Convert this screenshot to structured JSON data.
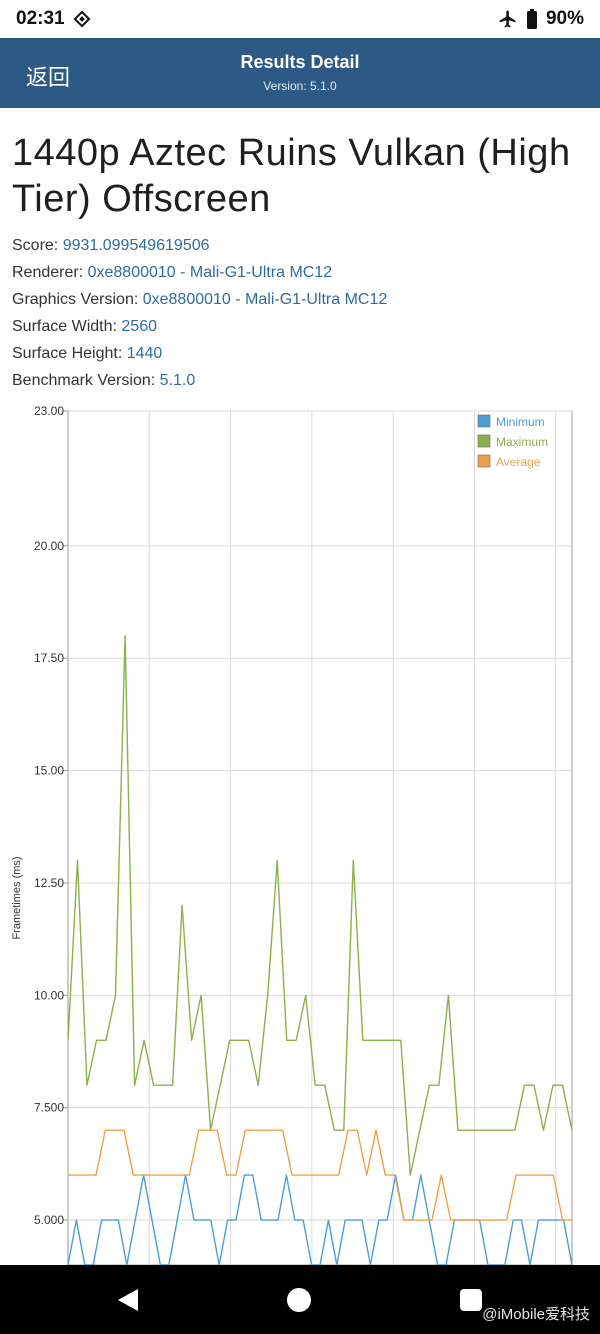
{
  "status_bar": {
    "time": "02:31",
    "battery": "90%"
  },
  "app_bar": {
    "back_label": "返回",
    "title": "Results Detail",
    "subtitle": "Version: 5.1.0"
  },
  "test": {
    "title": "1440p Aztec Ruins Vulkan (High Tier) Offscreen",
    "info": [
      {
        "label": "Score:",
        "value": "9931.099549619506"
      },
      {
        "label": "Renderer:",
        "value": "0xe8800010 - Mali-G1-Ultra MC12"
      },
      {
        "label": "Graphics Version:",
        "value": "0xe8800010 - Mali-G1-Ultra MC12"
      },
      {
        "label": "Surface Width:",
        "value": "2560"
      },
      {
        "label": "Surface Height:",
        "value": "1440"
      },
      {
        "label": "Benchmark Version:",
        "value": "5.1.0"
      }
    ]
  },
  "chart_data": {
    "type": "line",
    "ylabel": "Frametimes (ms)",
    "ylim": [
      4.0,
      23.0
    ],
    "yticks": [
      {
        "value": 23.0,
        "label": "23.00"
      },
      {
        "value": 20.0,
        "label": "20.00"
      },
      {
        "value": 17.5,
        "label": "17.50"
      },
      {
        "value": 15.0,
        "label": "15.00"
      },
      {
        "value": 12.5,
        "label": "12.50"
      },
      {
        "value": 10.0,
        "label": "10.00"
      },
      {
        "value": 7.5,
        "label": "7.500"
      },
      {
        "value": 5.0,
        "label": "5.000"
      }
    ],
    "grid": true,
    "legend_position": "top-right",
    "series": [
      {
        "name": "Minimum",
        "color": "#4a9fd4",
        "values": [
          4,
          5,
          4,
          4,
          5,
          5,
          5,
          4,
          5,
          6,
          5,
          4,
          4,
          5,
          6,
          5,
          5,
          5,
          4,
          5,
          5,
          6,
          6,
          5,
          5,
          5,
          6,
          5,
          5,
          4,
          4,
          5,
          4,
          5,
          5,
          5,
          4,
          5,
          5,
          6,
          5,
          5,
          6,
          5,
          4,
          4,
          5,
          5,
          5,
          5,
          4,
          4,
          4,
          5,
          5,
          4,
          5,
          5,
          5,
          5,
          4
        ]
      },
      {
        "name": "Maximum",
        "color": "#8db04a",
        "values": [
          9,
          13,
          8,
          9,
          9,
          10,
          18,
          8,
          9,
          8,
          8,
          8,
          12,
          9,
          10,
          7,
          8,
          9,
          9,
          9,
          8,
          10,
          13,
          9,
          9,
          10,
          8,
          8,
          7,
          7,
          13,
          9,
          9,
          9,
          9,
          9,
          6,
          7,
          8,
          8,
          10,
          7,
          7,
          7,
          7,
          7,
          7,
          7,
          8,
          8,
          7,
          8,
          8,
          7
        ]
      },
      {
        "name": "Average",
        "color": "#f0a04a",
        "values": [
          6,
          6,
          6,
          6,
          7,
          7,
          7,
          6,
          6,
          6,
          6,
          6,
          6,
          6,
          7,
          7,
          7,
          6,
          6,
          7,
          7,
          7,
          7,
          7,
          6,
          6,
          6,
          6,
          6,
          6,
          7,
          7,
          6,
          7,
          6,
          6,
          5,
          5,
          5,
          5,
          6,
          5,
          5,
          5,
          5,
          5,
          5,
          5,
          6,
          6,
          6,
          6,
          6,
          5,
          5
        ]
      }
    ]
  },
  "nav": {
    "watermark": "@iMobile爱科技"
  }
}
